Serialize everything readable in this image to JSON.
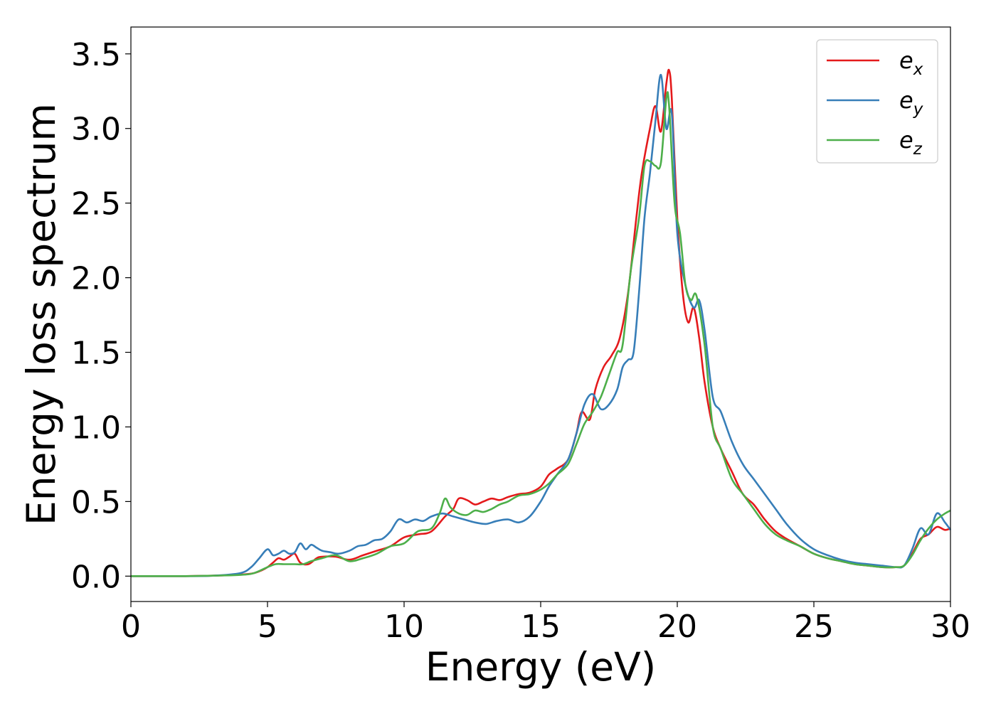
{
  "chart_data": {
    "type": "line",
    "title": "",
    "xlabel": "Energy (eV)",
    "ylabel": "Energy loss spectrum",
    "xlim": [
      0,
      30
    ],
    "ylim": [
      -0.17,
      3.68
    ],
    "xticks": [
      0,
      5,
      10,
      15,
      20,
      25,
      30
    ],
    "yticks": [
      0.0,
      0.5,
      1.0,
      1.5,
      2.0,
      2.5,
      3.0,
      3.5
    ],
    "xtick_labels": [
      "0",
      "5",
      "10",
      "15",
      "20",
      "25",
      "30"
    ],
    "ytick_labels": [
      "0.0",
      "0.5",
      "1.0",
      "1.5",
      "2.0",
      "2.5",
      "3.0",
      "3.5"
    ],
    "grid": false,
    "legend_position": "top-right",
    "series": [
      {
        "name": "e",
        "subscript": "x",
        "color": "#e41a1c",
        "x": [
          0,
          1,
          2,
          3,
          4,
          4.5,
          4.8,
          5.0,
          5.2,
          5.4,
          5.6,
          5.8,
          6.0,
          6.2,
          6.5,
          6.8,
          7.0,
          7.5,
          8.0,
          8.5,
          9.0,
          9.5,
          10.0,
          10.5,
          11.0,
          11.5,
          11.8,
          12.0,
          12.3,
          12.6,
          12.9,
          13.2,
          13.5,
          13.8,
          14.2,
          14.6,
          15.0,
          15.3,
          15.6,
          16.0,
          16.3,
          16.5,
          16.8,
          17.0,
          17.3,
          17.6,
          17.9,
          18.2,
          18.5,
          18.7,
          19.0,
          19.2,
          19.4,
          19.6,
          19.7,
          19.8,
          20.0,
          20.2,
          20.4,
          20.6,
          20.8,
          21.0,
          21.3,
          21.6,
          22.0,
          22.4,
          22.8,
          23.2,
          23.6,
          24.0,
          24.5,
          25.0,
          25.5,
          26.0,
          26.5,
          27.0,
          27.5,
          28.0,
          28.3,
          28.6,
          28.9,
          29.2,
          29.5,
          29.8,
          30.0
        ],
        "y": [
          0,
          0,
          0,
          0.003,
          0.01,
          0.02,
          0.04,
          0.06,
          0.09,
          0.12,
          0.11,
          0.13,
          0.15,
          0.09,
          0.08,
          0.12,
          0.13,
          0.13,
          0.11,
          0.14,
          0.17,
          0.2,
          0.26,
          0.28,
          0.3,
          0.4,
          0.45,
          0.52,
          0.51,
          0.48,
          0.5,
          0.52,
          0.51,
          0.53,
          0.55,
          0.56,
          0.6,
          0.68,
          0.72,
          0.78,
          0.95,
          1.1,
          1.05,
          1.25,
          1.4,
          1.48,
          1.6,
          1.9,
          2.4,
          2.7,
          3.0,
          3.15,
          2.98,
          3.3,
          3.39,
          3.2,
          2.4,
          1.9,
          1.7,
          1.8,
          1.6,
          1.3,
          1.0,
          0.85,
          0.7,
          0.55,
          0.48,
          0.38,
          0.3,
          0.25,
          0.2,
          0.15,
          0.12,
          0.1,
          0.08,
          0.07,
          0.06,
          0.06,
          0.07,
          0.15,
          0.25,
          0.28,
          0.33,
          0.31,
          0.32
        ]
      },
      {
        "name": "e",
        "subscript": "y",
        "color": "#377eb8",
        "x": [
          0,
          1,
          2,
          3,
          4,
          4.4,
          4.7,
          5.0,
          5.2,
          5.4,
          5.6,
          5.8,
          6.0,
          6.2,
          6.4,
          6.6,
          6.8,
          7.0,
          7.3,
          7.6,
          8.0,
          8.3,
          8.6,
          8.9,
          9.2,
          9.5,
          9.8,
          10.1,
          10.4,
          10.7,
          11.0,
          11.4,
          11.8,
          12.2,
          12.6,
          13.0,
          13.4,
          13.8,
          14.2,
          14.6,
          15.0,
          15.3,
          15.6,
          16.0,
          16.3,
          16.6,
          16.9,
          17.2,
          17.5,
          17.8,
          18.0,
          18.2,
          18.4,
          18.6,
          18.8,
          19.0,
          19.2,
          19.4,
          19.6,
          19.8,
          20.0,
          20.3,
          20.6,
          20.8,
          21.0,
          21.3,
          21.6,
          22.0,
          22.4,
          22.8,
          23.2,
          23.6,
          24.0,
          24.5,
          25.0,
          25.5,
          26.0,
          26.5,
          27.0,
          27.5,
          28.0,
          28.3,
          28.6,
          28.9,
          29.2,
          29.5,
          29.8,
          30.0
        ],
        "y": [
          0,
          0,
          0,
          0.003,
          0.02,
          0.06,
          0.12,
          0.18,
          0.14,
          0.15,
          0.17,
          0.15,
          0.16,
          0.22,
          0.18,
          0.21,
          0.19,
          0.17,
          0.16,
          0.15,
          0.17,
          0.2,
          0.21,
          0.24,
          0.25,
          0.3,
          0.38,
          0.36,
          0.38,
          0.37,
          0.4,
          0.42,
          0.4,
          0.38,
          0.36,
          0.35,
          0.37,
          0.38,
          0.36,
          0.4,
          0.5,
          0.6,
          0.68,
          0.78,
          0.95,
          1.15,
          1.22,
          1.12,
          1.15,
          1.25,
          1.4,
          1.45,
          1.5,
          1.9,
          2.4,
          2.7,
          3.05,
          3.36,
          3.0,
          3.1,
          2.3,
          1.95,
          1.8,
          1.85,
          1.65,
          1.2,
          1.1,
          0.9,
          0.75,
          0.65,
          0.55,
          0.45,
          0.35,
          0.25,
          0.18,
          0.14,
          0.11,
          0.09,
          0.08,
          0.07,
          0.06,
          0.07,
          0.18,
          0.32,
          0.28,
          0.42,
          0.36,
          0.31
        ]
      },
      {
        "name": "e",
        "subscript": "z",
        "color": "#4daf4a",
        "x": [
          0,
          1,
          2,
          3,
          4,
          4.5,
          5.0,
          5.3,
          5.6,
          6.0,
          6.3,
          6.6,
          7.0,
          7.5,
          8.0,
          8.5,
          9.0,
          9.5,
          10.0,
          10.5,
          11.0,
          11.3,
          11.5,
          11.7,
          12.0,
          12.3,
          12.6,
          12.9,
          13.2,
          13.5,
          13.8,
          14.2,
          14.6,
          15.0,
          15.3,
          15.6,
          16.0,
          16.3,
          16.6,
          16.9,
          17.2,
          17.5,
          17.8,
          18.0,
          18.3,
          18.6,
          18.8,
          19.0,
          19.2,
          19.4,
          19.6,
          19.7,
          19.9,
          20.1,
          20.3,
          20.5,
          20.7,
          21.0,
          21.3,
          21.6,
          22.0,
          22.4,
          22.8,
          23.2,
          23.6,
          24.0,
          24.5,
          25.0,
          25.5,
          26.0,
          26.5,
          27.0,
          27.5,
          28.0,
          28.3,
          28.6,
          28.9,
          29.2,
          29.5,
          29.8,
          30.0
        ],
        "y": [
          0,
          0,
          0,
          0.003,
          0.008,
          0.02,
          0.06,
          0.08,
          0.08,
          0.08,
          0.08,
          0.1,
          0.12,
          0.14,
          0.1,
          0.12,
          0.15,
          0.2,
          0.22,
          0.3,
          0.32,
          0.42,
          0.52,
          0.46,
          0.42,
          0.41,
          0.44,
          0.43,
          0.45,
          0.48,
          0.5,
          0.54,
          0.55,
          0.58,
          0.62,
          0.68,
          0.75,
          0.88,
          1.02,
          1.1,
          1.2,
          1.35,
          1.5,
          1.55,
          2.05,
          2.4,
          2.75,
          2.78,
          2.75,
          2.77,
          3.2,
          3.15,
          2.5,
          2.3,
          1.95,
          1.85,
          1.88,
          1.55,
          1.0,
          0.85,
          0.65,
          0.55,
          0.45,
          0.35,
          0.28,
          0.24,
          0.2,
          0.15,
          0.12,
          0.1,
          0.08,
          0.07,
          0.06,
          0.06,
          0.07,
          0.14,
          0.24,
          0.32,
          0.38,
          0.42,
          0.44
        ]
      }
    ]
  }
}
